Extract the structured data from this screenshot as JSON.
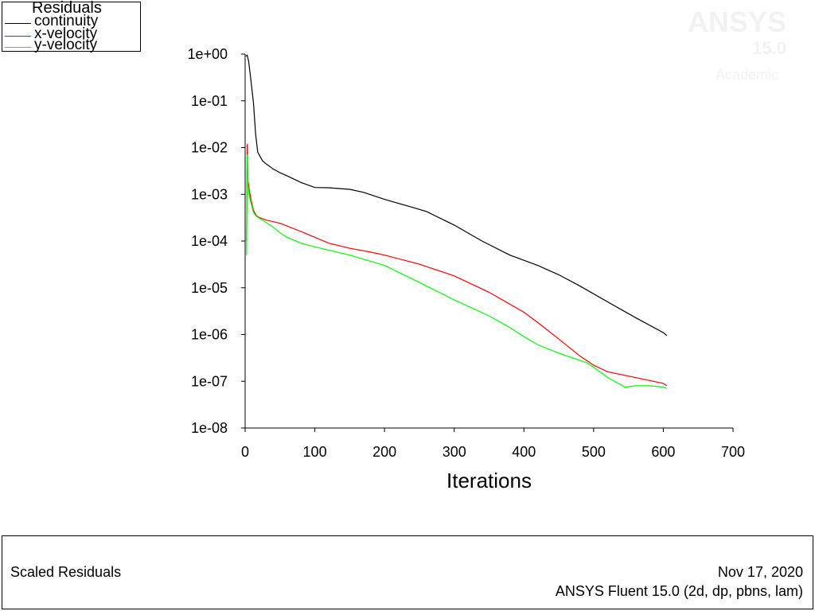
{
  "watermark": {
    "brand": "ANSYS",
    "version": "15.0",
    "edition": "Academic"
  },
  "legend": {
    "title": "Residuals",
    "items": [
      {
        "label": "continuity",
        "color": "#000000"
      },
      {
        "label": "x-velocity",
        "color": "#ff0000"
      },
      {
        "label": "y-velocity",
        "color": "#00ff00"
      }
    ]
  },
  "footer": {
    "title": "Scaled Residuals",
    "date": "Nov 17, 2020",
    "version": "ANSYS Fluent 15.0 (2d, dp, pbns, lam)"
  },
  "chart_data": {
    "type": "line",
    "title": "Scaled Residuals",
    "xlabel": "Iterations",
    "ylabel": "",
    "xlim": [
      0,
      700
    ],
    "ylim": [
      1e-08,
      1
    ],
    "yscale": "log",
    "xticks": [
      0,
      100,
      200,
      300,
      400,
      500,
      600,
      700
    ],
    "xtick_labels": [
      "0",
      "100",
      "200",
      "300",
      "400",
      "500",
      "600",
      "700"
    ],
    "yticks": [
      1,
      0.1,
      0.01,
      0.001,
      0.0001,
      1e-05,
      1e-06,
      1e-07,
      1e-08
    ],
    "ytick_labels": [
      "1e+00",
      "1e-01",
      "1e-02",
      "1e-03",
      "1e-04",
      "1e-05",
      "1e-06",
      "1e-07",
      "1e-08"
    ],
    "grid": false,
    "legend_position": "top-left",
    "series": [
      {
        "name": "continuity",
        "color": "#000000",
        "x": [
          1,
          3,
          5,
          8,
          12,
          15,
          18,
          22,
          25,
          30,
          40,
          50,
          60,
          80,
          100,
          120,
          150,
          170,
          200,
          230,
          260,
          300,
          340,
          380,
          420,
          450,
          480,
          520,
          560,
          600,
          605
        ],
        "y": [
          0.9,
          0.95,
          0.7,
          0.3,
          0.09,
          0.02,
          0.008,
          0.0062,
          0.0052,
          0.0045,
          0.0035,
          0.0029,
          0.0025,
          0.0018,
          0.0014,
          0.00138,
          0.00128,
          0.0011,
          0.00078,
          0.00058,
          0.00043,
          0.00022,
          0.0001,
          5e-05,
          3e-05,
          1.9e-05,
          1.1e-05,
          5e-06,
          2.3e-06,
          1.1e-06,
          9.5e-07
        ]
      },
      {
        "name": "x-velocity",
        "color": "#ff0000",
        "x": [
          2,
          3,
          4,
          6,
          9,
          12,
          16,
          20,
          30,
          40,
          50,
          60,
          80,
          100,
          120,
          150,
          180,
          200,
          250,
          300,
          350,
          400,
          420,
          450,
          480,
          500,
          520,
          560,
          600,
          605
        ],
        "y": [
          0.0001,
          0.012,
          0.002,
          0.0012,
          0.0007,
          0.00045,
          0.00035,
          0.00032,
          0.00028,
          0.00026,
          0.00024,
          0.00021,
          0.00016,
          0.00012,
          9e-05,
          7e-05,
          5.8e-05,
          5e-05,
          3.2e-05,
          1.8e-05,
          8e-06,
          3e-06,
          1.8e-06,
          8e-07,
          3.5e-07,
          2.2e-07,
          1.6e-07,
          1.2e-07,
          9e-08,
          8e-08
        ]
      },
      {
        "name": "y-velocity",
        "color": "#00ff00",
        "x": [
          2,
          3,
          4,
          6,
          9,
          12,
          16,
          20,
          30,
          40,
          50,
          60,
          80,
          100,
          150,
          200,
          250,
          300,
          350,
          380,
          400,
          420,
          450,
          490,
          500,
          520,
          545,
          560,
          580,
          600,
          605
        ],
        "y": [
          5e-05,
          0.007,
          0.0015,
          0.0009,
          0.0006,
          0.0004,
          0.00034,
          0.00031,
          0.00025,
          0.0002,
          0.00015,
          0.00012,
          9e-05,
          7.5e-05,
          5e-05,
          3e-05,
          1.3e-05,
          5.5e-06,
          2.5e-06,
          1.4e-06,
          9e-07,
          6e-07,
          4e-07,
          2.5e-07,
          2e-07,
          1.2e-07,
          7.5e-08,
          8e-08,
          8e-08,
          7.5e-08,
          7e-08
        ]
      }
    ]
  }
}
